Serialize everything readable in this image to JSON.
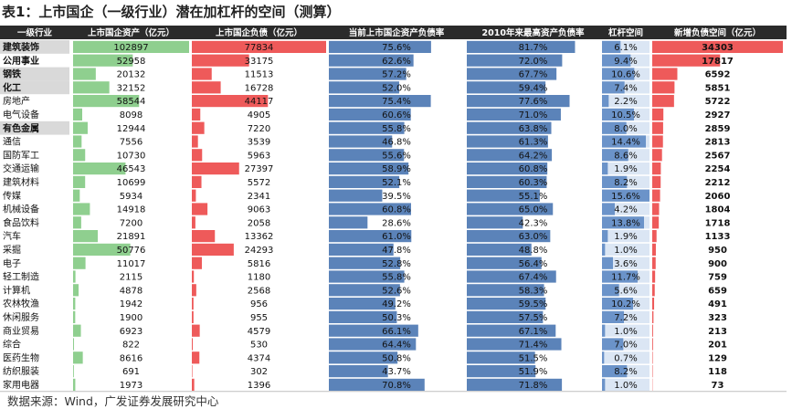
{
  "title": "表1：上市国企（一级行业）潜在加杠杆的空间（测算）",
  "source": "数据来源：Wind，广发证券发展研究中心",
  "colors": {
    "header_bg": "#2b2b2b",
    "header_text": "#ffffff",
    "asset_bar": "#8fcf8f",
    "debt_bar": "#ee5a5a",
    "ratio_bar": "#5b83b9",
    "space_bar": "#6b93c9",
    "space_cell_bg": "#dbe6f4",
    "debt_space_bar": "#ee5a5a",
    "highlight_row": "#d9d9d9",
    "grid": "#bfbfbf"
  },
  "chart_data": {
    "type": "table",
    "columns": [
      "一级行业",
      "上市国企资产（亿元）",
      "上市国企负债（亿元）",
      "当前上市国企资产负债率",
      "2010年来最高资产负债率",
      "杠杆空间",
      "新增负债空间（亿元）"
    ],
    "rows": [
      {
        "industry": "建筑装饰",
        "assets": 102897,
        "debt": 77834,
        "ratio": "75.6%",
        "max_ratio": "81.7%",
        "space": "6.1%",
        "new_debt": 34303,
        "bold": true,
        "shaded": true
      },
      {
        "industry": "公用事业",
        "assets": 52958,
        "debt": 33175,
        "ratio": "62.6%",
        "max_ratio": "72.0%",
        "space": "9.4%",
        "new_debt": 17817,
        "bold": true,
        "shaded": false
      },
      {
        "industry": "钢铁",
        "assets": 20132,
        "debt": 11513,
        "ratio": "57.2%",
        "max_ratio": "67.7%",
        "space": "10.6%",
        "new_debt": 6592,
        "bold": true,
        "shaded": true
      },
      {
        "industry": "化工",
        "assets": 32152,
        "debt": 16728,
        "ratio": "52.0%",
        "max_ratio": "59.4%",
        "space": "7.4%",
        "new_debt": 5851,
        "bold": true,
        "shaded": true
      },
      {
        "industry": "房地产",
        "assets": 58544,
        "debt": 44117,
        "ratio": "75.4%",
        "max_ratio": "77.6%",
        "space": "2.2%",
        "new_debt": 5722,
        "bold": false,
        "shaded": false
      },
      {
        "industry": "电气设备",
        "assets": 8098,
        "debt": 4905,
        "ratio": "60.6%",
        "max_ratio": "71.0%",
        "space": "10.5%",
        "new_debt": 2927,
        "bold": false,
        "shaded": false
      },
      {
        "industry": "有色金属",
        "assets": 12944,
        "debt": 7220,
        "ratio": "55.8%",
        "max_ratio": "63.8%",
        "space": "8.0%",
        "new_debt": 2859,
        "bold": true,
        "shaded": true
      },
      {
        "industry": "通信",
        "assets": 7556,
        "debt": 3539,
        "ratio": "46.8%",
        "max_ratio": "61.3%",
        "space": "14.4%",
        "new_debt": 2813,
        "bold": false,
        "shaded": false
      },
      {
        "industry": "国防军工",
        "assets": 10730,
        "debt": 5963,
        "ratio": "55.6%",
        "max_ratio": "64.2%",
        "space": "8.6%",
        "new_debt": 2567,
        "bold": false,
        "shaded": false
      },
      {
        "industry": "交通运输",
        "assets": 46543,
        "debt": 27397,
        "ratio": "58.9%",
        "max_ratio": "60.8%",
        "space": "1.9%",
        "new_debt": 2254,
        "bold": false,
        "shaded": false
      },
      {
        "industry": "建筑材料",
        "assets": 10699,
        "debt": 5572,
        "ratio": "52.1%",
        "max_ratio": "60.3%",
        "space": "8.2%",
        "new_debt": 2212,
        "bold": false,
        "shaded": false
      },
      {
        "industry": "传媒",
        "assets": 5934,
        "debt": 2341,
        "ratio": "39.5%",
        "max_ratio": "55.1%",
        "space": "15.6%",
        "new_debt": 2060,
        "bold": false,
        "shaded": false
      },
      {
        "industry": "机械设备",
        "assets": 14918,
        "debt": 9063,
        "ratio": "60.8%",
        "max_ratio": "65.0%",
        "space": "4.2%",
        "new_debt": 1804,
        "bold": false,
        "shaded": false
      },
      {
        "industry": "食品饮料",
        "assets": 7200,
        "debt": 2058,
        "ratio": "28.6%",
        "max_ratio": "42.3%",
        "space": "13.8%",
        "new_debt": 1718,
        "bold": false,
        "shaded": false
      },
      {
        "industry": "汽车",
        "assets": 21891,
        "debt": 13362,
        "ratio": "61.0%",
        "max_ratio": "63.0%",
        "space": "1.9%",
        "new_debt": 1133,
        "bold": false,
        "shaded": false
      },
      {
        "industry": "采掘",
        "assets": 50776,
        "debt": 24293,
        "ratio": "47.8%",
        "max_ratio": "48.8%",
        "space": "1.0%",
        "new_debt": 950,
        "bold": false,
        "shaded": false
      },
      {
        "industry": "电子",
        "assets": 11017,
        "debt": 5816,
        "ratio": "52.8%",
        "max_ratio": "56.4%",
        "space": "3.6%",
        "new_debt": 900,
        "bold": false,
        "shaded": false
      },
      {
        "industry": "轻工制造",
        "assets": 2115,
        "debt": 1180,
        "ratio": "55.8%",
        "max_ratio": "67.4%",
        "space": "11.7%",
        "new_debt": 759,
        "bold": false,
        "shaded": false
      },
      {
        "industry": "计算机",
        "assets": 4878,
        "debt": 2568,
        "ratio": "52.6%",
        "max_ratio": "58.3%",
        "space": "5.6%",
        "new_debt": 659,
        "bold": false,
        "shaded": false
      },
      {
        "industry": "农林牧渔",
        "assets": 1942,
        "debt": 956,
        "ratio": "49.2%",
        "max_ratio": "59.5%",
        "space": "10.2%",
        "new_debt": 491,
        "bold": false,
        "shaded": false
      },
      {
        "industry": "休闲服务",
        "assets": 1900,
        "debt": 955,
        "ratio": "50.3%",
        "max_ratio": "57.5%",
        "space": "7.2%",
        "new_debt": 323,
        "bold": false,
        "shaded": false
      },
      {
        "industry": "商业贸易",
        "assets": 6923,
        "debt": 4579,
        "ratio": "66.1%",
        "max_ratio": "67.1%",
        "space": "1.0%",
        "new_debt": 213,
        "bold": false,
        "shaded": false
      },
      {
        "industry": "综合",
        "assets": 822,
        "debt": 530,
        "ratio": "64.4%",
        "max_ratio": "71.4%",
        "space": "7.0%",
        "new_debt": 201,
        "bold": false,
        "shaded": false
      },
      {
        "industry": "医药生物",
        "assets": 8616,
        "debt": 4374,
        "ratio": "50.8%",
        "max_ratio": "51.5%",
        "space": "0.7%",
        "new_debt": 129,
        "bold": false,
        "shaded": false
      },
      {
        "industry": "纺织服装",
        "assets": 691,
        "debt": 302,
        "ratio": "43.7%",
        "max_ratio": "51.9%",
        "space": "8.2%",
        "new_debt": 118,
        "bold": false,
        "shaded": false
      },
      {
        "industry": "家用电器",
        "assets": 1973,
        "debt": 1396,
        "ratio": "70.8%",
        "max_ratio": "71.8%",
        "space": "1.0%",
        "new_debt": 73,
        "bold": false,
        "shaded": false
      }
    ]
  }
}
